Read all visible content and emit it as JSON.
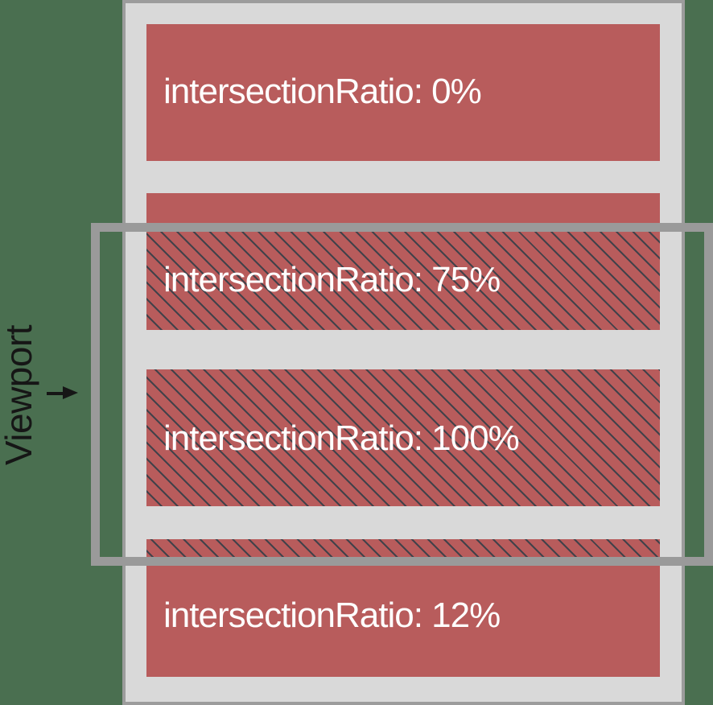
{
  "viewport": {
    "label": "Viewport"
  },
  "boxes": [
    {
      "label": "intersectionRatio: 0%",
      "ratio_percent": 0,
      "intersecting": false
    },
    {
      "label": "intersectionRatio: 75%",
      "ratio_percent": 75,
      "intersecting": true
    },
    {
      "label": "intersectionRatio: 100%",
      "ratio_percent": 100,
      "intersecting": true
    },
    {
      "label": "intersectionRatio: 12%",
      "ratio_percent": 12,
      "intersecting": true
    }
  ],
  "icons": {
    "viewport-pointer": "arrow-right"
  },
  "colors": {
    "green-background": "#4a6f50",
    "page-fill": "#d9d9d9",
    "page-border": "#9c9c9c",
    "viewport-stroke": "#9a9a9a",
    "box-red": "#b85c5c",
    "hatch-line": "#42424a",
    "box-text": "#ffffff",
    "label-black": "#161616"
  }
}
